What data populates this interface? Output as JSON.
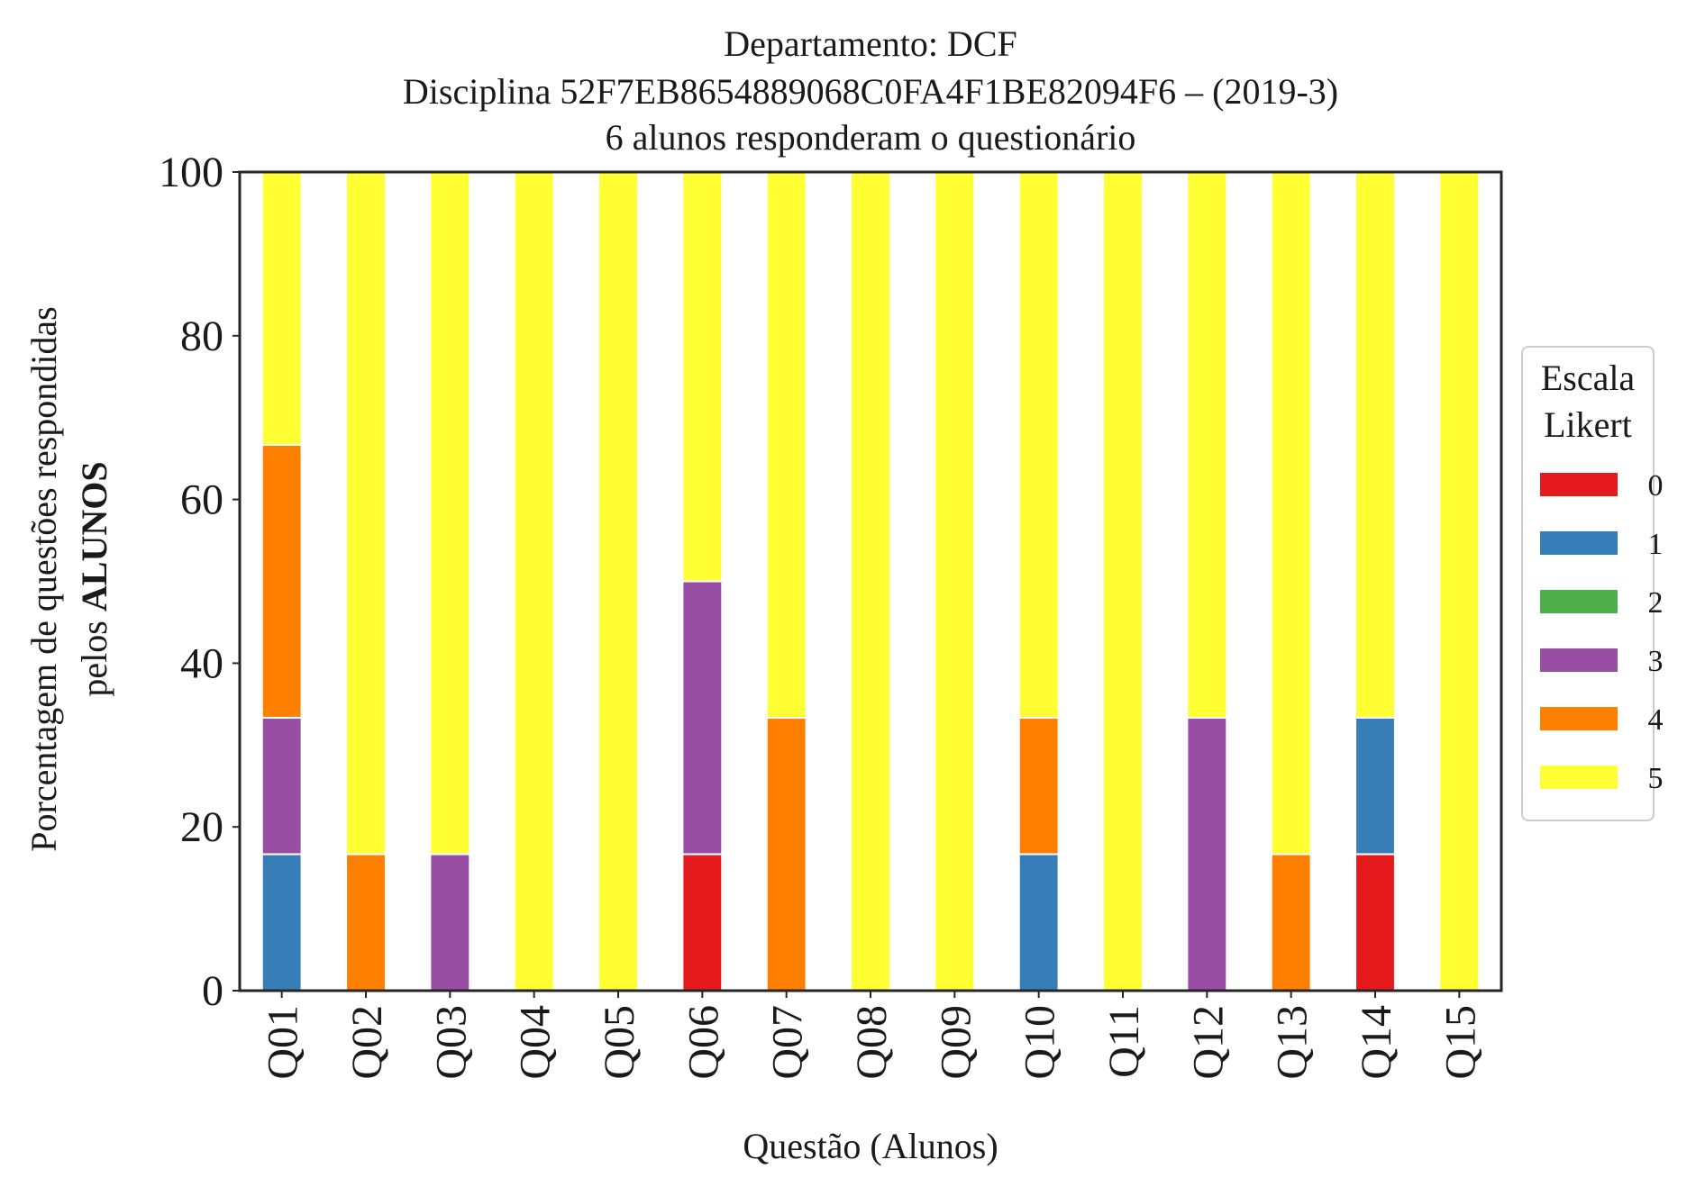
{
  "chart_data": {
    "type": "bar",
    "stacked": true,
    "title_lines": [
      "Departamento: DCF",
      "Disciplina 52F7EB8654889068C0FA4F1BE82094F6 – (2019-3)",
      "6 alunos responderam o questionário"
    ],
    "xlabel": "Questão (Alunos)",
    "ylabel_line1": "Porcentagem de questões respondidas",
    "ylabel_line2_prefix": "pelos ",
    "ylabel_line2_bold": "ALUNOS",
    "ylim": [
      0,
      100
    ],
    "yticks": [
      "0",
      "20",
      "40",
      "60",
      "80",
      "100"
    ],
    "ytick_values": [
      0,
      20,
      40,
      60,
      80,
      100
    ],
    "grid": false,
    "legend_title_lines": [
      "Escala",
      "Likert"
    ],
    "legend_placement": "right",
    "categories": [
      "Q01",
      "Q02",
      "Q03",
      "Q04",
      "Q05",
      "Q06",
      "Q07",
      "Q08",
      "Q09",
      "Q10",
      "Q11",
      "Q12",
      "Q13",
      "Q14",
      "Q15"
    ],
    "series": [
      {
        "name": "0",
        "color": "#e41a1c",
        "values": [
          0,
          0,
          0,
          0,
          0,
          16.67,
          0,
          0,
          0,
          0,
          0,
          0,
          0,
          16.67,
          0
        ]
      },
      {
        "name": "1",
        "color": "#377eb8",
        "values": [
          16.67,
          0,
          0,
          0,
          0,
          0,
          0,
          0,
          0,
          16.67,
          0,
          0,
          0,
          16.67,
          0
        ]
      },
      {
        "name": "2",
        "color": "#4daf4a",
        "values": [
          0,
          0,
          0,
          0,
          0,
          0,
          0,
          0,
          0,
          0,
          0,
          0,
          0,
          0,
          0
        ]
      },
      {
        "name": "3",
        "color": "#984ea3",
        "values": [
          16.67,
          0,
          16.67,
          0,
          0,
          33.33,
          0,
          0,
          0,
          0,
          0,
          33.33,
          0,
          0,
          0
        ]
      },
      {
        "name": "4",
        "color": "#ff7f00",
        "values": [
          33.33,
          16.67,
          0,
          0,
          0,
          0,
          33.33,
          0,
          0,
          16.67,
          0,
          0,
          16.67,
          0,
          0
        ]
      },
      {
        "name": "5",
        "color": "#ffff33",
        "values": [
          33.33,
          83.33,
          83.33,
          100,
          100,
          50,
          66.67,
          100,
          100,
          66.67,
          100,
          66.67,
          83.33,
          66.67,
          100
        ]
      }
    ]
  }
}
